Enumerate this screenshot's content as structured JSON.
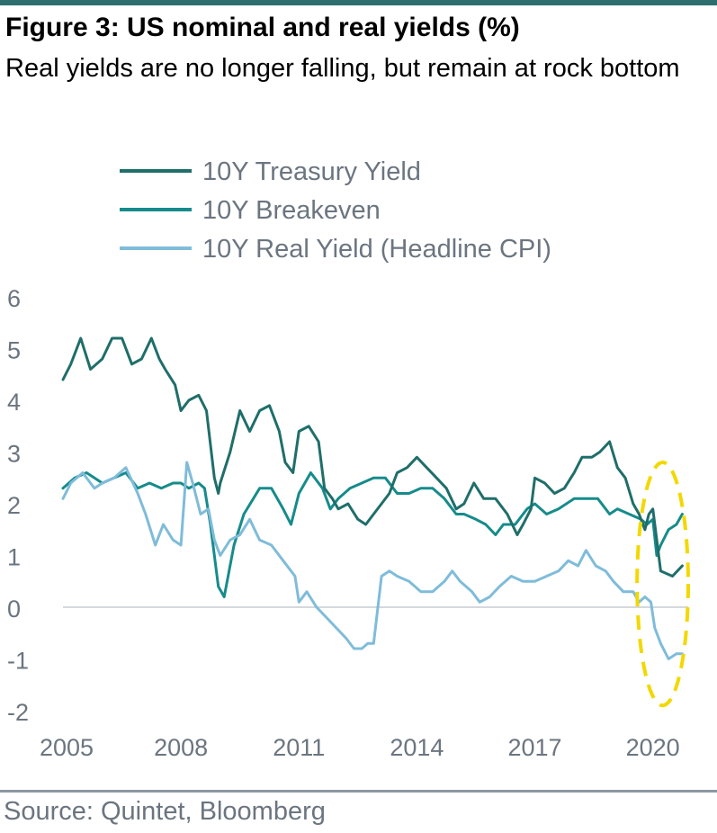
{
  "title": "Figure 3: US nominal and real yields (%)",
  "subtitle": "Real yields are no longer falling, but remain at rock bottom",
  "source": "Source: Quintet, Bloomberg",
  "chart_data": {
    "type": "line",
    "title": "",
    "xlabel": "",
    "ylabel": "",
    "xlim": [
      2005,
      2020.9
    ],
    "ylim": [
      -2,
      6
    ],
    "x_ticks": [
      "2005",
      "2008",
      "2011",
      "2014",
      "2017",
      "2020"
    ],
    "y_ticks": [
      "6",
      "5",
      "4",
      "3",
      "2",
      "1",
      "0",
      "-1",
      "-2"
    ],
    "grid": false,
    "zero_line": true,
    "legend_position": "top",
    "highlight": {
      "shape": "dashed ellipse",
      "color": "#f2d800",
      "x_range": [
        2019.6,
        2020.9
      ],
      "y_range": [
        -1.9,
        2.8
      ]
    },
    "series": [
      {
        "name": "10Y Treasury Yield",
        "color": "#1f6e6a",
        "x": [
          2005.0,
          2005.2,
          2005.45,
          2005.7,
          2006.0,
          2006.25,
          2006.5,
          2006.75,
          2007.0,
          2007.25,
          2007.45,
          2007.6,
          2007.85,
          2008.0,
          2008.2,
          2008.45,
          2008.65,
          2008.85,
          2008.95,
          2009.0,
          2009.25,
          2009.5,
          2009.75,
          2010.0,
          2010.25,
          2010.5,
          2010.65,
          2010.85,
          2011.0,
          2011.25,
          2011.5,
          2011.65,
          2011.85,
          2012.0,
          2012.25,
          2012.5,
          2012.7,
          2012.9,
          2013.1,
          2013.3,
          2013.5,
          2013.75,
          2014.0,
          2014.25,
          2014.5,
          2014.75,
          2015.0,
          2015.2,
          2015.45,
          2015.7,
          2016.0,
          2016.3,
          2016.55,
          2016.7,
          2016.9,
          2017.0,
          2017.25,
          2017.5,
          2017.75,
          2018.0,
          2018.2,
          2018.45,
          2018.65,
          2018.9,
          2019.1,
          2019.3,
          2019.5,
          2019.65,
          2019.8,
          2019.9,
          2020.0,
          2020.2,
          2020.5,
          2020.75
        ],
        "y": [
          4.4,
          4.7,
          5.2,
          4.6,
          4.8,
          5.2,
          5.2,
          4.7,
          4.8,
          5.2,
          4.8,
          4.6,
          4.3,
          3.8,
          4.0,
          4.1,
          3.8,
          2.5,
          2.2,
          2.4,
          3.0,
          3.8,
          3.4,
          3.8,
          3.9,
          3.4,
          2.8,
          2.6,
          3.4,
          3.5,
          3.2,
          2.3,
          2.1,
          1.9,
          2.0,
          1.7,
          1.6,
          1.8,
          2.0,
          2.2,
          2.6,
          2.7,
          2.9,
          2.7,
          2.5,
          2.3,
          1.9,
          2.0,
          2.4,
          2.1,
          2.1,
          1.8,
          1.4,
          1.6,
          1.9,
          2.5,
          2.4,
          2.2,
          2.3,
          2.6,
          2.9,
          2.9,
          3.0,
          3.2,
          2.7,
          2.5,
          2.0,
          1.8,
          1.5,
          1.8,
          1.9,
          0.7,
          0.6,
          0.8
        ]
      },
      {
        "name": "10Y Breakeven",
        "color": "#168b8b",
        "x": [
          2005.0,
          2005.3,
          2005.6,
          2006.0,
          2006.3,
          2006.6,
          2006.9,
          2007.2,
          2007.5,
          2007.8,
          2008.0,
          2008.2,
          2008.45,
          2008.6,
          2008.75,
          2008.95,
          2009.1,
          2009.35,
          2009.6,
          2010.0,
          2010.3,
          2010.6,
          2010.8,
          2011.0,
          2011.3,
          2011.6,
          2011.8,
          2012.0,
          2012.3,
          2012.6,
          2012.9,
          2013.2,
          2013.5,
          2013.8,
          2014.1,
          2014.4,
          2014.7,
          2015.0,
          2015.2,
          2015.5,
          2015.75,
          2016.0,
          2016.2,
          2016.5,
          2016.8,
          2017.0,
          2017.3,
          2017.6,
          2018.0,
          2018.3,
          2018.6,
          2018.9,
          2019.1,
          2019.4,
          2019.7,
          2019.85,
          2020.0,
          2020.1,
          2020.2,
          2020.4,
          2020.6,
          2020.75
        ],
        "y": [
          2.3,
          2.5,
          2.6,
          2.4,
          2.5,
          2.6,
          2.3,
          2.4,
          2.3,
          2.4,
          2.4,
          2.3,
          2.4,
          2.3,
          1.6,
          0.4,
          0.2,
          1.2,
          1.8,
          2.3,
          2.3,
          1.9,
          1.6,
          2.2,
          2.6,
          2.3,
          1.9,
          2.1,
          2.3,
          2.4,
          2.5,
          2.5,
          2.2,
          2.2,
          2.3,
          2.3,
          2.1,
          1.8,
          1.8,
          1.7,
          1.6,
          1.4,
          1.6,
          1.6,
          1.9,
          2.0,
          1.8,
          1.9,
          2.1,
          2.1,
          2.1,
          1.8,
          1.9,
          1.8,
          1.7,
          1.6,
          1.7,
          1.0,
          1.2,
          1.5,
          1.6,
          1.8
        ]
      },
      {
        "name": "10Y Real Yield (Headline CPI)",
        "color": "#7fbcd9",
        "x": [
          2005.0,
          2005.2,
          2005.5,
          2005.8,
          2006.0,
          2006.3,
          2006.6,
          2006.9,
          2007.1,
          2007.35,
          2007.55,
          2007.8,
          2008.0,
          2008.15,
          2008.3,
          2008.5,
          2008.7,
          2008.85,
          2009.0,
          2009.25,
          2009.5,
          2009.75,
          2010.0,
          2010.3,
          2010.6,
          2010.9,
          2011.0,
          2011.2,
          2011.45,
          2011.7,
          2011.95,
          2012.2,
          2012.4,
          2012.6,
          2012.75,
          2012.9,
          2013.1,
          2013.3,
          2013.5,
          2013.8,
          2014.1,
          2014.4,
          2014.7,
          2014.9,
          2015.1,
          2015.4,
          2015.6,
          2015.85,
          2016.1,
          2016.4,
          2016.7,
          2017.0,
          2017.3,
          2017.6,
          2017.85,
          2018.1,
          2018.3,
          2018.55,
          2018.8,
          2019.0,
          2019.25,
          2019.5,
          2019.65,
          2019.8,
          2019.95,
          2020.05,
          2020.2,
          2020.4,
          2020.6,
          2020.75
        ],
        "y": [
          2.1,
          2.4,
          2.6,
          2.3,
          2.4,
          2.5,
          2.7,
          2.2,
          1.8,
          1.2,
          1.6,
          1.3,
          1.2,
          2.8,
          2.4,
          1.8,
          1.9,
          1.3,
          1.0,
          1.3,
          1.4,
          1.7,
          1.3,
          1.2,
          0.9,
          0.6,
          0.1,
          0.3,
          0.0,
          -0.2,
          -0.4,
          -0.6,
          -0.8,
          -0.8,
          -0.7,
          -0.7,
          0.6,
          0.7,
          0.6,
          0.5,
          0.3,
          0.3,
          0.5,
          0.7,
          0.5,
          0.3,
          0.1,
          0.2,
          0.4,
          0.6,
          0.5,
          0.5,
          0.6,
          0.7,
          0.9,
          0.8,
          1.1,
          0.8,
          0.7,
          0.5,
          0.3,
          0.3,
          0.1,
          0.2,
          0.1,
          -0.4,
          -0.7,
          -1.0,
          -0.9,
          -0.9
        ]
      }
    ]
  }
}
